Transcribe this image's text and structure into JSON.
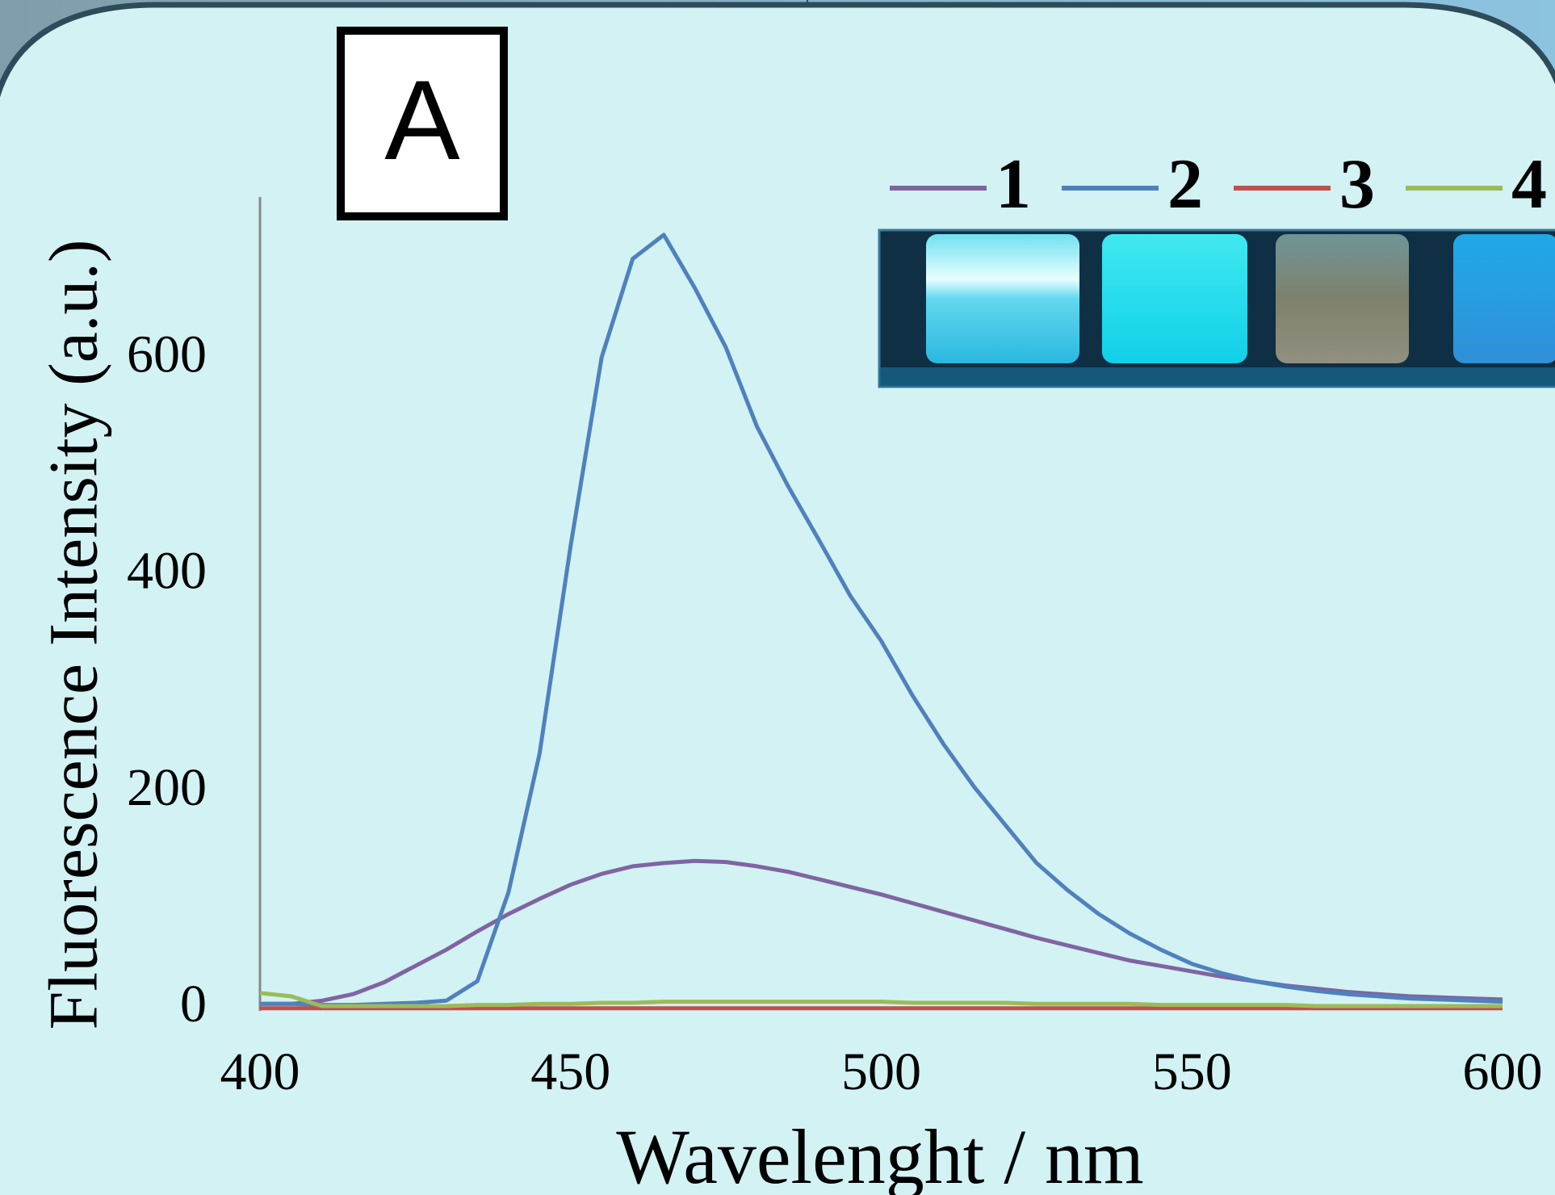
{
  "chart_data": {
    "type": "line",
    "panel_label": "A",
    "x_label": "Wavelenght / nm",
    "y_label": "Fluorescence Intensity (a.u.)",
    "x": [
      400,
      405,
      410,
      415,
      420,
      425,
      430,
      435,
      440,
      445,
      450,
      455,
      460,
      465,
      470,
      475,
      480,
      485,
      490,
      495,
      500,
      505,
      510,
      515,
      520,
      525,
      530,
      535,
      540,
      545,
      550,
      555,
      560,
      565,
      570,
      575,
      580,
      585,
      590,
      595,
      600
    ],
    "series": [
      {
        "name": "1",
        "color": "#8064a2",
        "values": [
          5,
          5,
          8,
          14,
          25,
          40,
          55,
          72,
          88,
          102,
          115,
          125,
          132,
          135,
          137,
          136,
          132,
          127,
          120,
          113,
          106,
          98,
          90,
          82,
          74,
          66,
          59,
          52,
          45,
          40,
          35,
          30,
          26,
          22,
          19,
          16,
          14,
          12,
          11,
          10,
          9
        ]
      },
      {
        "name": "2",
        "color": "#4f81bd",
        "values": [
          5,
          5,
          4,
          4,
          5,
          6,
          8,
          26,
          108,
          236,
          428,
          602,
          693,
          715,
          666,
          611,
          538,
          483,
          433,
          382,
          340,
          290,
          245,
          205,
          170,
          135,
          110,
          88,
          70,
          55,
          42,
          33,
          26,
          21,
          17,
          14,
          12,
          10,
          9,
          8,
          7
        ]
      },
      {
        "name": "3",
        "color": "#c0504d",
        "values": [
          1,
          1,
          1,
          1,
          1,
          1,
          1,
          1,
          1,
          1,
          1,
          1,
          1,
          1,
          1,
          1,
          1,
          1,
          1,
          1,
          1,
          1,
          1,
          1,
          1,
          1,
          1,
          1,
          1,
          1,
          1,
          1,
          1,
          1,
          1,
          1,
          1,
          1,
          1,
          1,
          1
        ]
      },
      {
        "name": "4",
        "color": "#9bbb59",
        "values": [
          15,
          12,
          3,
          3,
          3,
          3,
          3,
          4,
          4,
          5,
          5,
          6,
          6,
          7,
          7,
          7,
          7,
          7,
          7,
          7,
          7,
          6,
          6,
          6,
          6,
          5,
          5,
          5,
          5,
          4,
          4,
          4,
          4,
          4,
          3,
          3,
          3,
          3,
          3,
          3,
          3
        ]
      }
    ],
    "xlim": [
      400,
      600
    ],
    "xticks": [
      400,
      450,
      500,
      550,
      600
    ],
    "ylim": [
      0,
      750
    ],
    "yticks": [
      0,
      200,
      400,
      600
    ],
    "grid": false
  }
}
